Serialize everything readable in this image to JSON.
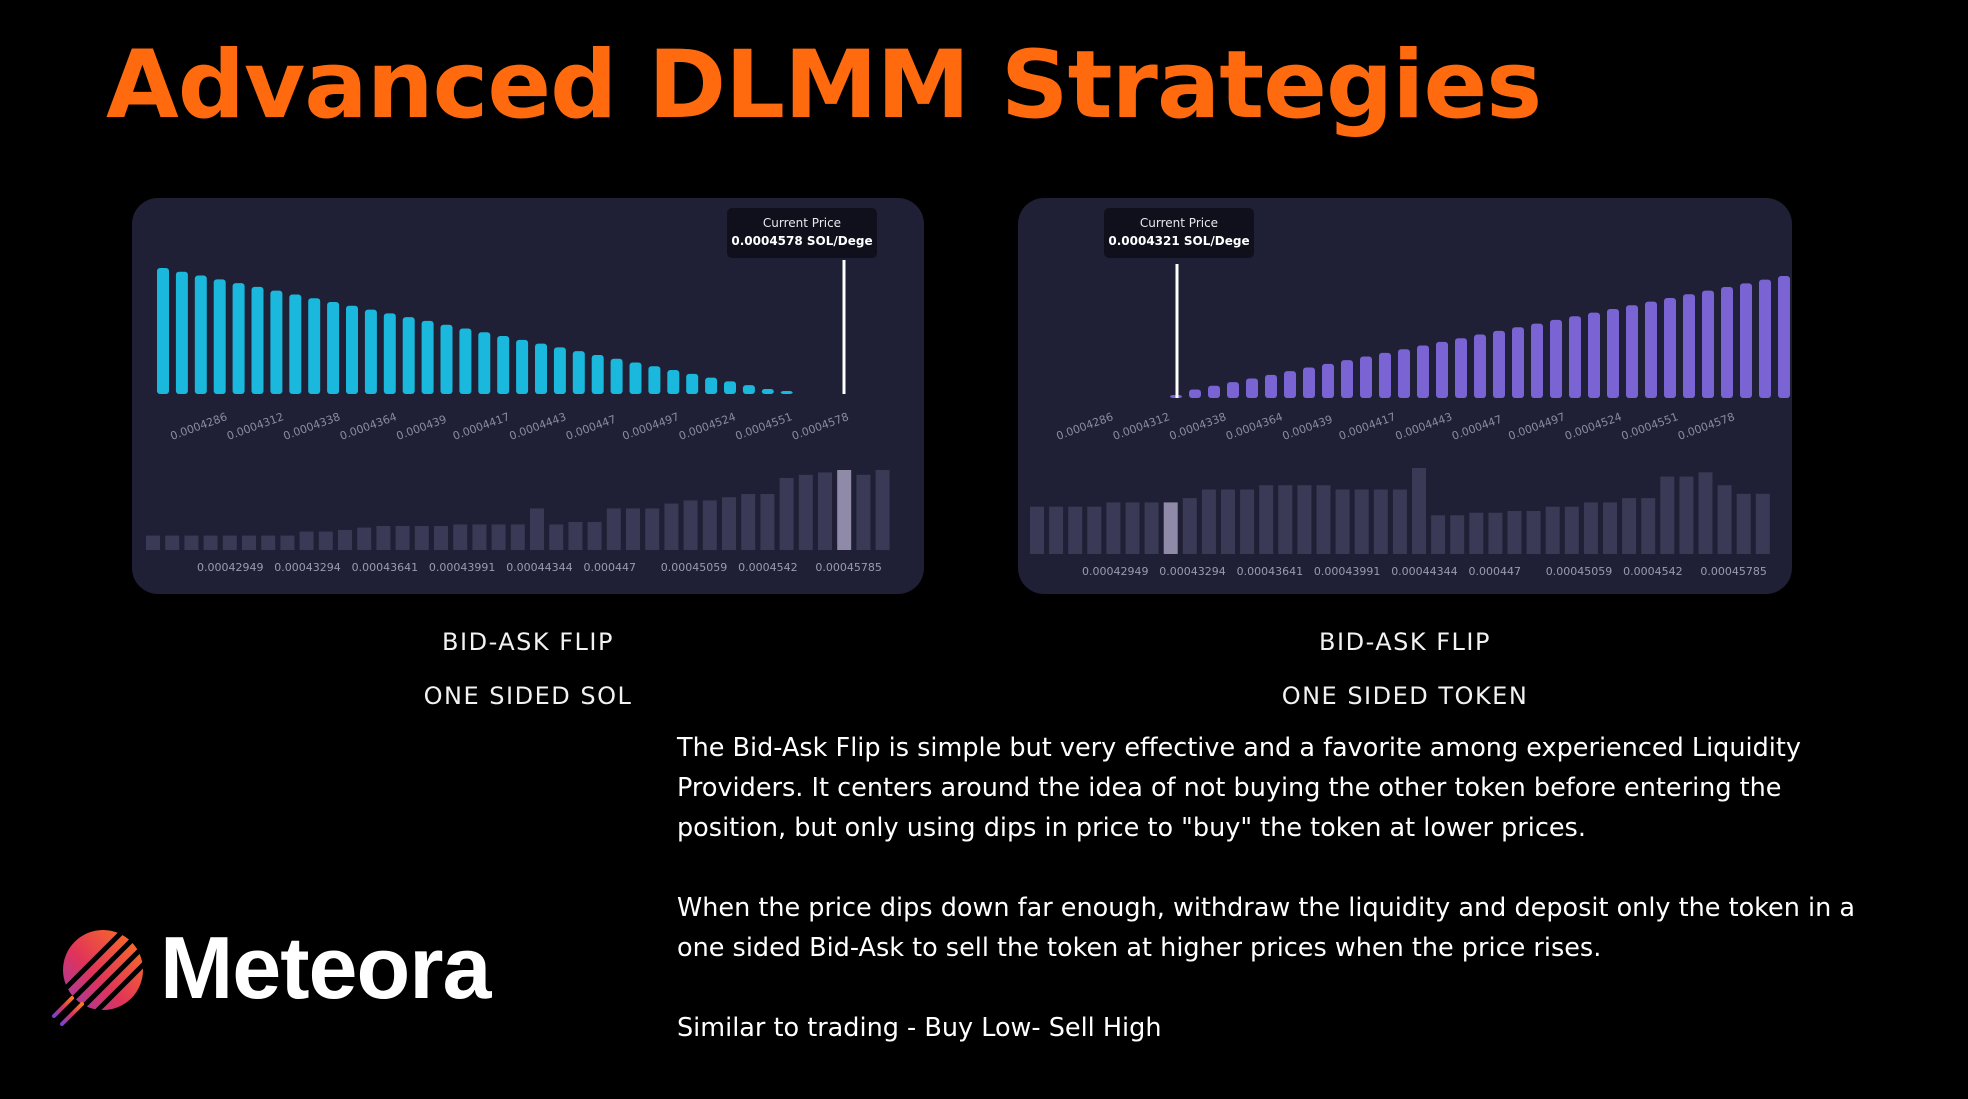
{
  "title": "Advanced DLMM Strategies",
  "colors": {
    "accent": "#ff6a0f",
    "panel_bg": "#1f1f35",
    "cyan_bar": "#19b8dc",
    "purple_bar": "#7a63d2",
    "volume_bar": "#3a3a56",
    "volume_highlight": "#8f8aa8"
  },
  "brand": {
    "name": "Meteora",
    "icon": "meteor-stripes-icon"
  },
  "charts": [
    {
      "tooltip_title": "Current Price",
      "tooltip_value": "0.0004578 SOL/Dege",
      "caption_line1": "BID-ASK FLIP",
      "caption_line2": "ONE SIDED SOL"
    },
    {
      "tooltip_title": "Current Price",
      "tooltip_value": "0.0004321 SOL/Dege",
      "caption_line1": "BID-ASK FLIP",
      "caption_line2": "ONE SIDED TOKEN"
    }
  ],
  "description": {
    "p1": "The Bid-Ask Flip is simple but very effective and a favorite among experienced Liquidity Providers. It centers around the idea of not buying the other token before entering the position, but only using dips in price to \"buy\" the token at lower prices.",
    "p2": "When the price dips down far enough, withdraw the liquidity and deposit only the token in a one sided Bid-Ask to sell the token at higher prices when the price rises.",
    "p3": "Similar to trading - Buy Low- Sell High"
  },
  "chart_data": [
    {
      "type": "bar",
      "series": [
        {
          "values": [
            1.0,
            0.97,
            0.94,
            0.91,
            0.88,
            0.85,
            0.82,
            0.79,
            0.76,
            0.73,
            0.7,
            0.67,
            0.64,
            0.61,
            0.58,
            0.55,
            0.52,
            0.49,
            0.46,
            0.43,
            0.4,
            0.37,
            0.34,
            0.31,
            0.28,
            0.25,
            0.22,
            0.19,
            0.16,
            0.13,
            0.1,
            0.07,
            0.04,
            0.02
          ]
        }
      ],
      "current_price_marker": 0.0004578,
      "x_tick_labels": [
        "0.0004286",
        "0.0004312",
        "0.0004338",
        "0.0004364",
        "0.000439",
        "0.0004417",
        "0.0004443",
        "0.000447",
        "0.0004497",
        "0.0004524",
        "0.0004551",
        "0.0004578"
      ],
      "volume_tick_labels": [
        "0.00042949",
        "0.00043294",
        "0.00043641",
        "0.00043991",
        "0.00044344",
        "0.000447",
        "0.00045059",
        "0.0004542",
        "0.00045785"
      ],
      "volume_values": [
        0.18,
        0.18,
        0.18,
        0.18,
        0.18,
        0.18,
        0.18,
        0.18,
        0.23,
        0.23,
        0.25,
        0.28,
        0.3,
        0.3,
        0.3,
        0.3,
        0.32,
        0.32,
        0.32,
        0.32,
        0.52,
        0.32,
        0.35,
        0.35,
        0.52,
        0.52,
        0.52,
        0.58,
        0.62,
        0.62,
        0.66,
        0.7,
        0.7,
        0.9,
        0.94,
        0.97,
        1.0,
        0.94,
        1.0
      ],
      "volume_highlight_index": 36
    },
    {
      "type": "bar",
      "series": [
        {
          "values": [
            0.0,
            0.07,
            0.1,
            0.13,
            0.16,
            0.19,
            0.22,
            0.25,
            0.28,
            0.31,
            0.34,
            0.37,
            0.4,
            0.43,
            0.46,
            0.49,
            0.52,
            0.55,
            0.58,
            0.61,
            0.64,
            0.67,
            0.7,
            0.73,
            0.76,
            0.79,
            0.82,
            0.85,
            0.88,
            0.91,
            0.94,
            0.97,
            1.0
          ]
        }
      ],
      "current_price_marker": 0.0004321,
      "x_tick_labels": [
        "0.0004286",
        "0.0004312",
        "0.0004338",
        "0.0004364",
        "0.000439",
        "0.0004417",
        "0.0004443",
        "0.000447",
        "0.0004497",
        "0.0004524",
        "0.0004551",
        "0.0004578"
      ],
      "volume_tick_labels": [
        "0.00042949",
        "0.00043294",
        "0.00043641",
        "0.00043991",
        "0.00044344",
        "0.000447",
        "0.00045059",
        "0.0004542",
        "0.00045785"
      ],
      "volume_values": [
        0.55,
        0.55,
        0.55,
        0.55,
        0.6,
        0.6,
        0.6,
        0.6,
        0.65,
        0.75,
        0.75,
        0.75,
        0.8,
        0.8,
        0.8,
        0.8,
        0.75,
        0.75,
        0.75,
        0.75,
        1.0,
        0.45,
        0.45,
        0.48,
        0.48,
        0.5,
        0.5,
        0.55,
        0.55,
        0.6,
        0.6,
        0.65,
        0.65,
        0.9,
        0.9,
        0.95,
        0.8,
        0.7,
        0.7
      ],
      "volume_highlight_index": 7
    }
  ]
}
